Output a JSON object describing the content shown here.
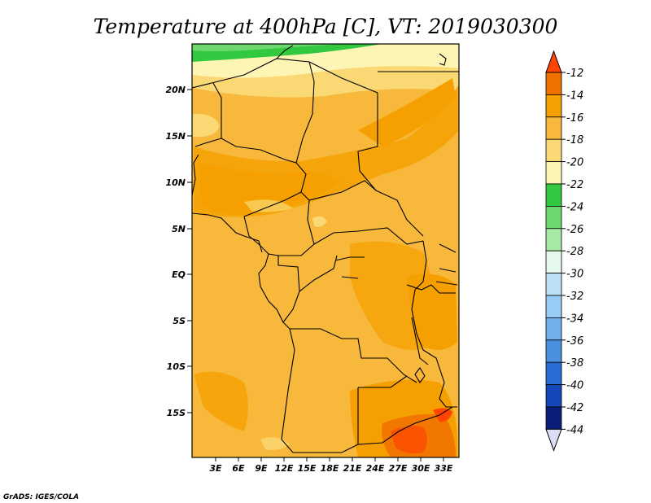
{
  "title": "Temperature at 400hPa [C], VT: 2019030300",
  "credit": "GrADS: IGES/COLA",
  "map": {
    "lat_labels": [
      "20N",
      "15N",
      "10N",
      "5N",
      "EQ",
      "5S",
      "10S",
      "15S"
    ],
    "lon_labels": [
      "3E",
      "6E",
      "9E",
      "12E",
      "15E",
      "18E",
      "21E",
      "24E",
      "27E",
      "30E",
      "33E"
    ]
  },
  "colorbar": {
    "levels": [
      "-12",
      "-14",
      "-16",
      "-18",
      "-20",
      "-22",
      "-24",
      "-26",
      "-28",
      "-30",
      "-32",
      "-34",
      "-36",
      "-38",
      "-40",
      "-42",
      "-44"
    ],
    "colors": [
      "#ff4500",
      "#f07000",
      "#f5a000",
      "#f8b83c",
      "#fad874",
      "#fdf5b4",
      "#32c840",
      "#6ed86e",
      "#a6e8a4",
      "#e4f8ec",
      "#bde0f8",
      "#98ccf4",
      "#70b0ec",
      "#4a90e0",
      "#2a6cd6",
      "#1447b8",
      "#0a1e78",
      "#dcdcf4"
    ]
  }
}
